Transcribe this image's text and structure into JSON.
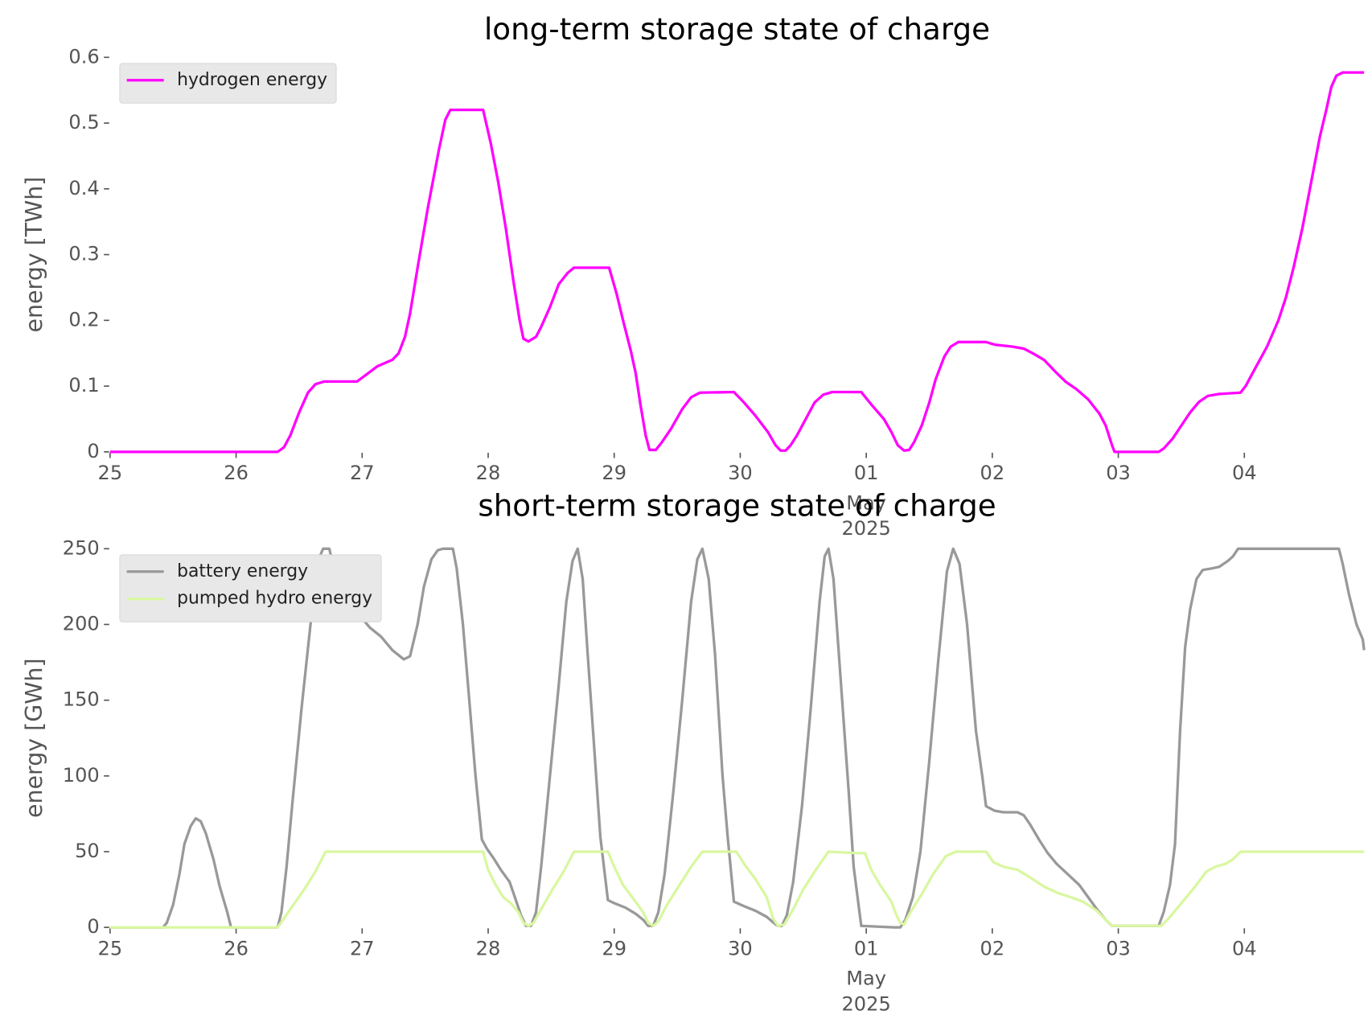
{
  "chart_data": [
    {
      "type": "line",
      "title": "long-term storage state of charge",
      "ylabel": "energy [TWh]",
      "legend": "upper left",
      "xlim": [
        0,
        9.95
      ],
      "ylim": [
        0,
        0.6
      ],
      "yticks": [
        0.0,
        0.1,
        0.2,
        0.3,
        0.4,
        0.5,
        0.6
      ],
      "xticks": [
        {
          "value": 0,
          "label": "25"
        },
        {
          "value": 1,
          "label": "26"
        },
        {
          "value": 2,
          "label": "27"
        },
        {
          "value": 3,
          "label": "28"
        },
        {
          "value": 4,
          "label": "29"
        },
        {
          "value": 5,
          "label": "30"
        },
        {
          "value": 6,
          "label": "01"
        },
        {
          "value": 7,
          "label": "02"
        },
        {
          "value": 8,
          "label": "03"
        },
        {
          "value": 9,
          "label": "04"
        }
      ],
      "xtick_sublabel": [
        "May",
        "2025"
      ],
      "series": [
        {
          "name": "hydrogen energy",
          "color": "#ff00ff",
          "x": [
            0,
            1.33,
            1.38,
            1.43,
            1.5,
            1.57,
            1.63,
            1.7,
            1.96,
            2.03,
            2.12,
            2.24,
            2.29,
            2.34,
            2.38,
            2.44,
            2.52,
            2.61,
            2.66,
            2.7,
            2.96,
            3.02,
            3.08,
            3.14,
            3.2,
            3.25,
            3.28,
            3.32,
            3.38,
            3.42,
            3.49,
            3.56,
            3.63,
            3.68,
            3.96,
            4.02,
            4.07,
            4.13,
            4.17,
            4.21,
            4.25,
            4.28,
            4.33,
            4.38,
            4.45,
            4.54,
            4.61,
            4.68,
            4.95,
            5.03,
            5.12,
            5.22,
            5.28,
            5.32,
            5.36,
            5.4,
            5.45,
            5.52,
            5.59,
            5.66,
            5.73,
            5.96,
            6.04,
            6.14,
            6.2,
            6.25,
            6.3,
            6.34,
            6.38,
            6.44,
            6.5,
            6.55,
            6.62,
            6.67,
            6.73,
            6.95,
            7.02,
            7.16,
            7.25,
            7.32,
            7.41,
            7.51,
            7.58,
            7.67,
            7.76,
            7.85,
            7.9,
            7.95,
            7.97,
            8.32,
            8.36,
            8.43,
            8.5,
            8.57,
            8.64,
            8.71,
            8.8,
            8.97,
            9.01,
            9.08,
            9.18,
            9.27,
            9.33,
            9.39,
            9.46,
            9.53,
            9.6,
            9.65,
            9.69,
            9.73,
            9.78,
            9.95
          ],
          "values": [
            0,
            0,
            0.007,
            0.025,
            0.06,
            0.09,
            0.103,
            0.107,
            0.107,
            0.117,
            0.13,
            0.14,
            0.15,
            0.175,
            0.21,
            0.28,
            0.37,
            0.46,
            0.505,
            0.52,
            0.52,
            0.47,
            0.41,
            0.34,
            0.26,
            0.2,
            0.172,
            0.168,
            0.175,
            0.19,
            0.22,
            0.255,
            0.272,
            0.28,
            0.28,
            0.24,
            0.2,
            0.155,
            0.12,
            0.07,
            0.025,
            0.003,
            0.003,
            0.015,
            0.035,
            0.065,
            0.083,
            0.09,
            0.091,
            0.075,
            0.055,
            0.03,
            0.01,
            0.002,
            0.002,
            0.01,
            0.025,
            0.05,
            0.075,
            0.087,
            0.091,
            0.091,
            0.072,
            0.05,
            0.03,
            0.01,
            0.002,
            0.003,
            0.015,
            0.04,
            0.075,
            0.11,
            0.145,
            0.16,
            0.167,
            0.167,
            0.163,
            0.16,
            0.157,
            0.15,
            0.14,
            0.12,
            0.107,
            0.095,
            0.08,
            0.058,
            0.04,
            0.01,
            0,
            0,
            0.005,
            0.02,
            0.04,
            0.06,
            0.076,
            0.085,
            0.088,
            0.09,
            0.1,
            0.125,
            0.16,
            0.2,
            0.235,
            0.28,
            0.34,
            0.41,
            0.48,
            0.52,
            0.555,
            0.572,
            0.577,
            0.577
          ]
        }
      ]
    },
    {
      "type": "line",
      "title": "short-term storage state of charge",
      "ylabel": "energy [GWh]",
      "legend": "upper left",
      "xlim": [
        0,
        9.95
      ],
      "ylim": [
        0,
        250
      ],
      "yticks": [
        0,
        50,
        100,
        150,
        200,
        250
      ],
      "xticks": [
        {
          "value": 0,
          "label": "25"
        },
        {
          "value": 1,
          "label": "26"
        },
        {
          "value": 2,
          "label": "27"
        },
        {
          "value": 3,
          "label": "28"
        },
        {
          "value": 4,
          "label": "29"
        },
        {
          "value": 5,
          "label": "30"
        },
        {
          "value": 6,
          "label": "01"
        },
        {
          "value": 7,
          "label": "02"
        },
        {
          "value": 8,
          "label": "03"
        },
        {
          "value": 9,
          "label": "04"
        }
      ],
      "xtick_sublabel": [
        "May",
        "2025"
      ],
      "series": [
        {
          "name": "battery energy",
          "color": "#999999",
          "x": [
            0,
            0.42,
            0.45,
            0.5,
            0.55,
            0.59,
            0.64,
            0.68,
            0.72,
            0.76,
            0.82,
            0.87,
            0.93,
            0.96,
            1.33,
            1.36,
            1.4,
            1.45,
            1.52,
            1.59,
            1.64,
            1.69,
            1.74,
            1.78,
            1.82,
            1.87,
            1.91,
            1.95,
            2.01,
            2.06,
            2.15,
            2.24,
            2.33,
            2.38,
            2.44,
            2.49,
            2.55,
            2.6,
            2.64,
            2.72,
            2.75,
            2.8,
            2.85,
            2.9,
            2.95,
            2.99,
            3.04,
            3.1,
            3.17,
            3.22,
            3.26,
            3.3,
            3.34,
            3.38,
            3.42,
            3.49,
            3.56,
            3.62,
            3.67,
            3.71,
            3.75,
            3.79,
            3.84,
            3.89,
            3.95,
            4.0,
            4.09,
            4.17,
            4.23,
            4.27,
            4.31,
            4.35,
            4.4,
            4.47,
            4.54,
            4.61,
            4.66,
            4.7,
            4.75,
            4.8,
            4.86,
            4.9,
            4.95,
            5.03,
            5.12,
            5.21,
            5.28,
            5.3,
            5.33,
            5.37,
            5.42,
            5.49,
            5.56,
            5.63,
            5.67,
            5.7,
            5.74,
            5.8,
            5.86,
            5.9,
            5.96,
            6.22,
            6.27,
            6.31,
            6.37,
            6.43,
            6.5,
            6.57,
            6.64,
            6.69,
            6.74,
            6.8,
            6.87,
            6.92,
            6.95,
            7.02,
            7.09,
            7.2,
            7.25,
            7.3,
            7.37,
            7.44,
            7.51,
            7.6,
            7.69,
            7.76,
            7.83,
            7.9,
            7.95,
            8.32,
            8.36,
            8.41,
            8.45,
            8.49,
            8.53,
            8.57,
            8.62,
            8.67,
            8.74,
            8.8,
            8.87,
            8.91,
            8.95,
            9.75,
            9.78,
            9.83,
            9.89,
            9.94,
            9.95
          ],
          "values": [
            0,
            0,
            3,
            15,
            35,
            55,
            67,
            72,
            70,
            62,
            45,
            27,
            10,
            0,
            0,
            10,
            40,
            85,
            145,
            200,
            240,
            250,
            250,
            235,
            220,
            210,
            206,
            208,
            203,
            198,
            192,
            183,
            177,
            179,
            200,
            225,
            243,
            249,
            250,
            250,
            237,
            200,
            150,
            100,
            58,
            52,
            46,
            38,
            30,
            18,
            8,
            1,
            1,
            10,
            40,
            100,
            160,
            215,
            242,
            250,
            230,
            180,
            120,
            60,
            18,
            16,
            13,
            9,
            5,
            1,
            1,
            10,
            35,
            90,
            150,
            215,
            243,
            250,
            230,
            180,
            100,
            60,
            17,
            14,
            11,
            7,
            2,
            1,
            1,
            8,
            30,
            80,
            145,
            215,
            245,
            250,
            230,
            160,
            90,
            40,
            1,
            0,
            0,
            5,
            20,
            50,
            110,
            175,
            235,
            250,
            240,
            200,
            130,
            100,
            80,
            77,
            76,
            76,
            74,
            68,
            58,
            49,
            42,
            35,
            28,
            20,
            12,
            5,
            1,
            1,
            10,
            28,
            55,
            130,
            185,
            210,
            230,
            236,
            237,
            238,
            242,
            245,
            250,
            250,
            240,
            220,
            200,
            190,
            183
          ]
        },
        {
          "name": "pumped hydro energy",
          "color": "#d9f7a0",
          "x": [
            0,
            1.33,
            1.43,
            1.54,
            1.63,
            1.71,
            2.96,
            3.0,
            3.06,
            3.12,
            3.18,
            3.24,
            3.28,
            3.32,
            3.36,
            3.42,
            3.51,
            3.6,
            3.68,
            3.95,
            4.0,
            4.07,
            4.16,
            4.23,
            4.27,
            4.31,
            4.35,
            4.42,
            4.51,
            4.61,
            4.7,
            4.97,
            5.03,
            5.12,
            5.21,
            5.26,
            5.3,
            5.35,
            5.42,
            5.5,
            5.6,
            5.7,
            5.94,
            5.99,
            6.04,
            6.11,
            6.2,
            6.24,
            6.27,
            6.3,
            6.35,
            6.44,
            6.53,
            6.63,
            6.71,
            6.95,
            7.01,
            7.09,
            7.2,
            7.3,
            7.41,
            7.51,
            7.62,
            7.72,
            7.83,
            7.9,
            7.95,
            8.34,
            8.39,
            8.49,
            8.6,
            8.7,
            8.77,
            8.85,
            8.91,
            8.97,
            9.95
          ],
          "values": [
            0,
            0,
            12,
            25,
            37,
            50,
            50,
            38,
            28,
            20,
            16,
            10,
            3,
            1,
            3,
            12,
            25,
            37,
            50,
            50,
            40,
            28,
            18,
            10,
            3,
            1,
            4,
            15,
            27,
            40,
            50,
            50,
            42,
            32,
            20,
            6,
            1,
            2,
            12,
            25,
            38,
            50,
            49,
            49,
            38,
            28,
            17,
            8,
            3,
            2,
            10,
            22,
            35,
            47,
            50,
            50,
            43,
            40,
            38,
            33,
            27,
            23,
            20,
            17,
            11,
            5,
            1,
            1,
            5,
            15,
            26,
            37,
            40,
            42,
            45,
            50,
            50
          ]
        }
      ]
    }
  ]
}
